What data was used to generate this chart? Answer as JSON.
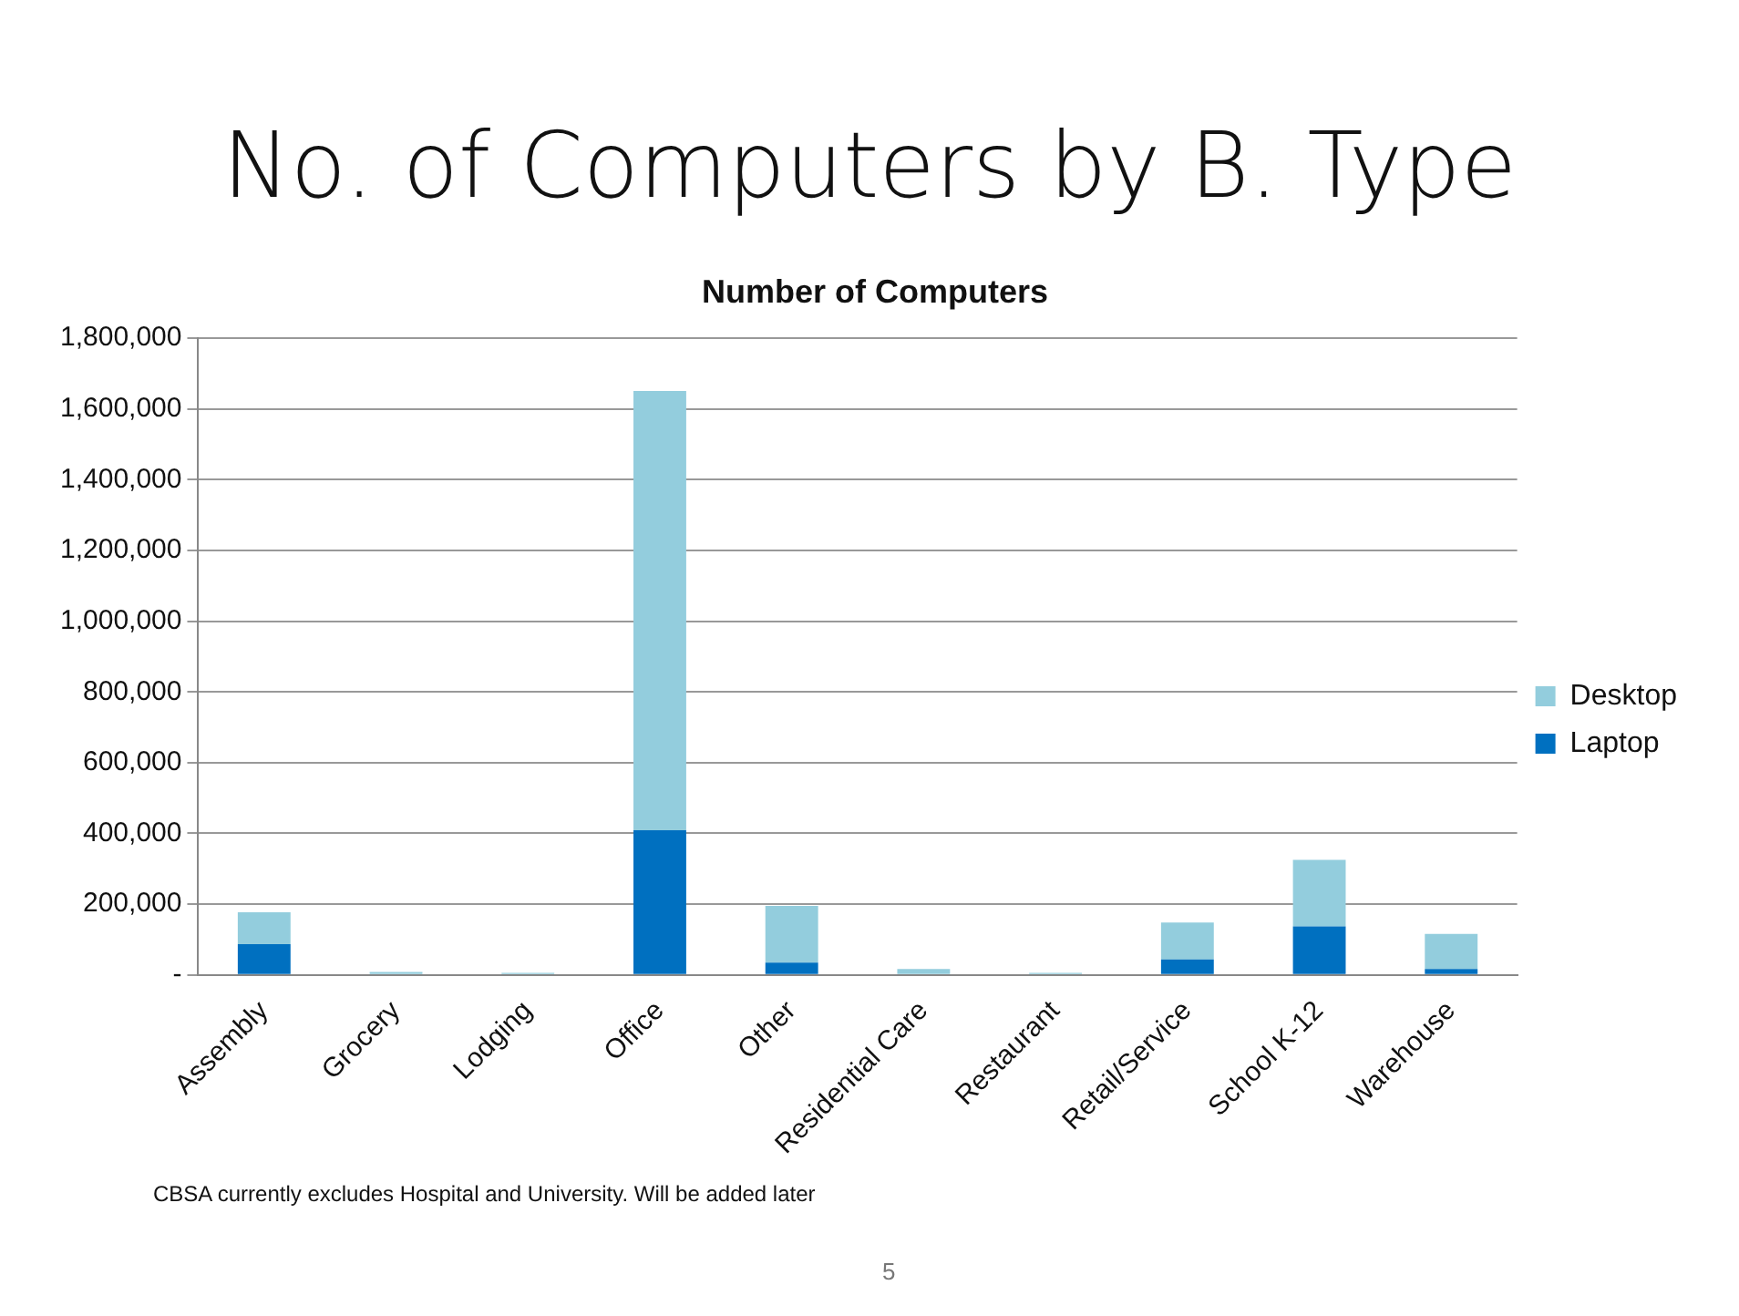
{
  "chart_data": {
    "type": "bar",
    "title": "No. of Computers by B. Type",
    "subtitle": "Number of Computers",
    "categories": [
      "Assembly",
      "Grocery",
      "Lodging",
      "Office",
      "Other",
      "Residential Care",
      "Restaurant",
      "Retail/Service",
      "School K-12",
      "Warehouse"
    ],
    "series": [
      {
        "name": "Laptop",
        "color": "#0070c0",
        "values": [
          87000,
          null,
          null,
          409000,
          35000,
          null,
          null,
          44000,
          137000,
          17000
        ]
      },
      {
        "name": "Desktop",
        "color": "#93cddd",
        "values": [
          90000,
          8000,
          6000,
          1242000,
          160000,
          17000,
          6000,
          104000,
          188000,
          99000
        ]
      }
    ],
    "stacked": true,
    "ylim": [
      0,
      1800000
    ],
    "yticks": [
      {
        "value": 0,
        "label": "-"
      },
      {
        "value": 200000,
        "label": "200,000"
      },
      {
        "value": 400000,
        "label": "400,000"
      },
      {
        "value": 600000,
        "label": "600,000"
      },
      {
        "value": 800000,
        "label": "800,000"
      },
      {
        "value": 1000000,
        "label": "1,000,000"
      },
      {
        "value": 1200000,
        "label": "1,200,000"
      },
      {
        "value": 1400000,
        "label": "1,400,000"
      },
      {
        "value": 1600000,
        "label": "1,600,000"
      },
      {
        "value": 1800000,
        "label": "1,800,000"
      }
    ],
    "grid": "y",
    "legend": "right",
    "annotations": [
      "CBSA currently excludes Hospital and University.  Will be added later",
      "5"
    ]
  }
}
